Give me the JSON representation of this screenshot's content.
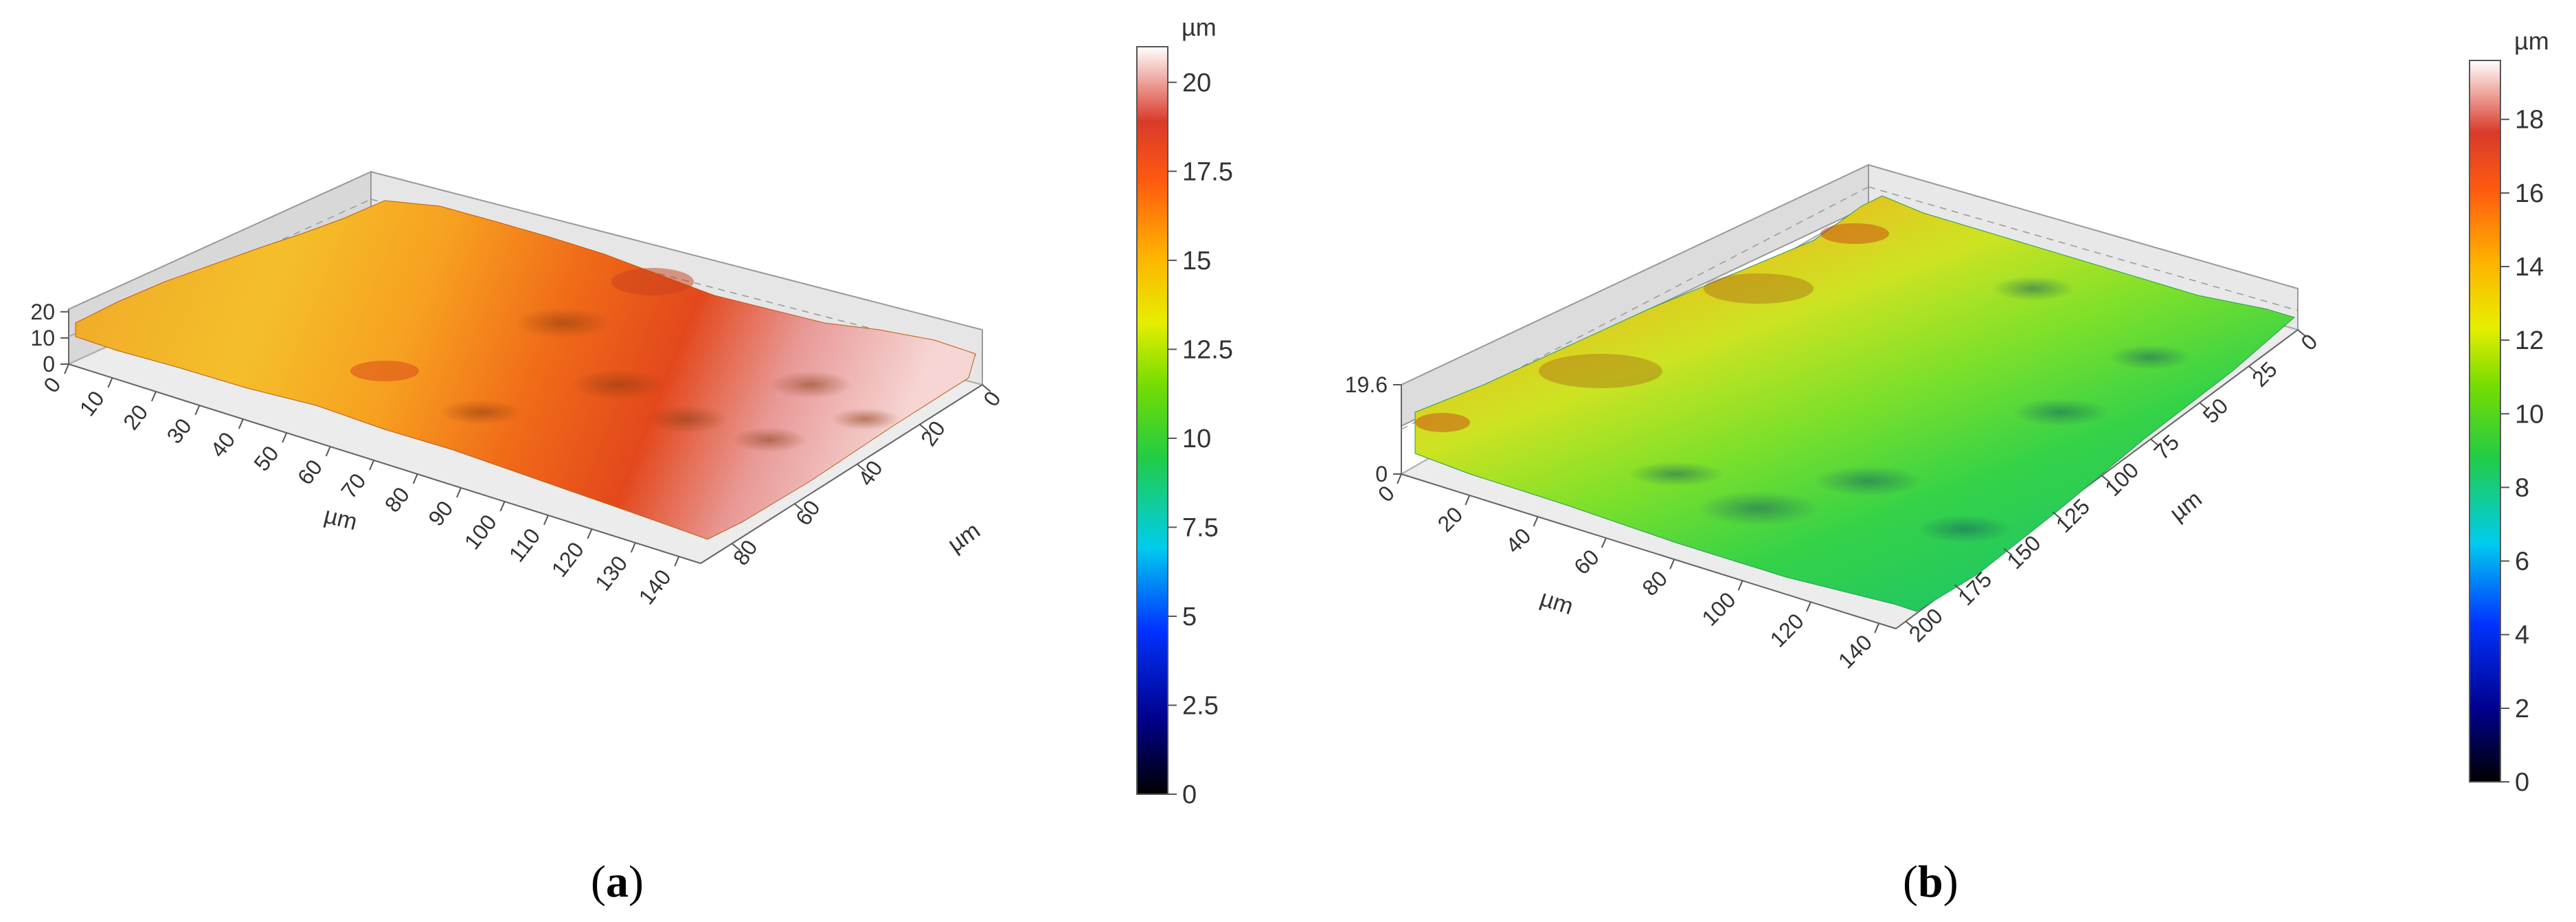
{
  "figure": {
    "caption_a": {
      "open": "(",
      "letter": "a",
      "close": ")"
    },
    "caption_b": {
      "open": "(",
      "letter": "b",
      "close": ")"
    }
  },
  "chart_data": [
    {
      "type": "surface3d",
      "panel": "a",
      "x_label": "µm",
      "y_label": "µm",
      "x_ticks": [
        "0",
        "10",
        "20",
        "30",
        "40",
        "50",
        "60",
        "70",
        "80",
        "90",
        "100",
        "110",
        "120",
        "130",
        "140"
      ],
      "y_ticks": [
        "0",
        "20",
        "40",
        "60",
        "80"
      ],
      "z_ticks": [
        "0",
        "10",
        "20"
      ],
      "xlim": [
        0,
        145
      ],
      "ylim": [
        0,
        90
      ],
      "zlim": [
        0,
        21
      ],
      "colorbar": {
        "unit": "µm",
        "min": 0,
        "max": 21,
        "ticks": [
          "0",
          "2.5",
          "5",
          "7.5",
          "10",
          "12.5",
          "15",
          "17.5",
          "20"
        ]
      },
      "grid": true
    },
    {
      "type": "surface3d",
      "panel": "b",
      "x_label": "µm",
      "y_label": "µm",
      "x_ticks": [
        "0",
        "20",
        "40",
        "60",
        "80",
        "100",
        "120",
        "140"
      ],
      "y_ticks": [
        "0",
        "25",
        "50",
        "75",
        "100",
        "125",
        "150",
        "175",
        "200"
      ],
      "z_ticks": [
        "0",
        "19.6"
      ],
      "xlim": [
        0,
        145
      ],
      "ylim": [
        0,
        205
      ],
      "zlim": [
        0,
        19.6
      ],
      "colorbar": {
        "unit": "µm",
        "min": 0,
        "max": 19.6,
        "ticks": [
          "0",
          "2",
          "4",
          "6",
          "8",
          "10",
          "12",
          "14",
          "16",
          "18"
        ]
      },
      "grid": true
    }
  ]
}
